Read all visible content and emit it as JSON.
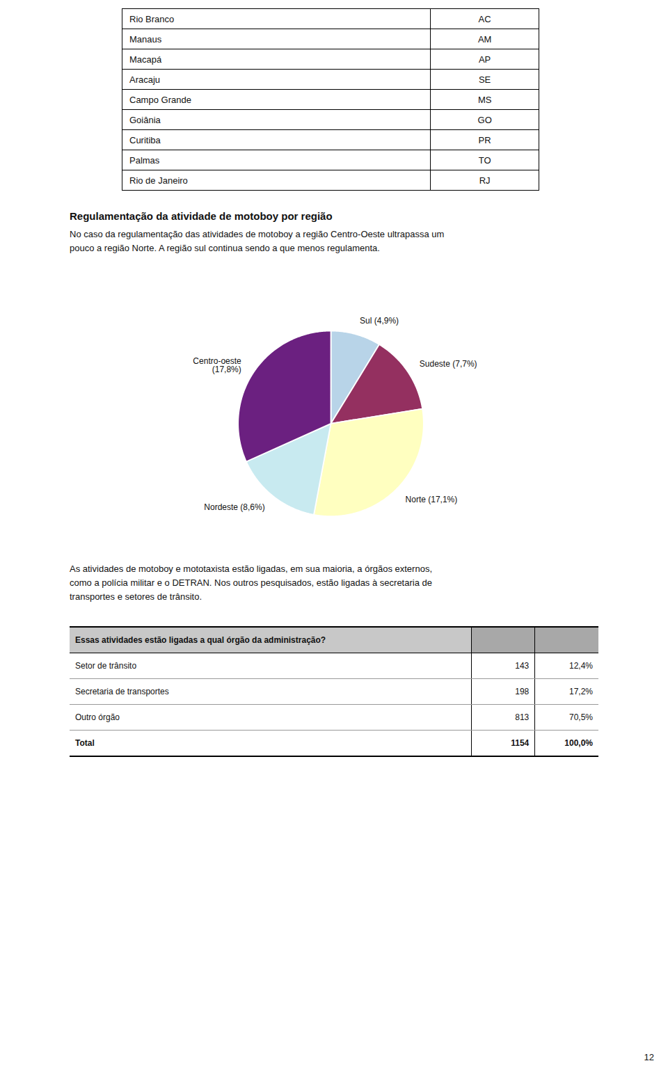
{
  "chart_data": [
    {
      "type": "table",
      "rows": [
        [
          "Rio Branco",
          "AC"
        ],
        [
          "Manaus",
          "AM"
        ],
        [
          "Macapá",
          "AP"
        ],
        [
          "Aracaju",
          "SE"
        ],
        [
          "Campo Grande",
          "MS"
        ],
        [
          "Goiânia",
          "GO"
        ],
        [
          "Curitiba",
          "PR"
        ],
        [
          "Palmas",
          "TO"
        ],
        [
          "Rio de Janeiro",
          "RJ"
        ]
      ]
    },
    {
      "type": "pie",
      "title": "Regulamentação da atividade de motoboy por região",
      "subtitle": [
        "No caso da regulamentação das atividades de motoboy a região Centro-Oeste ultrapassa um",
        "pouco a região Norte. A região sul continua sendo a que menos regulamenta."
      ],
      "categories": [
        "Sul",
        "Sudeste",
        "Norte",
        "Nordeste",
        "Centro-oeste"
      ],
      "values": [
        4.9,
        7.7,
        17.1,
        8.6,
        17.8
      ],
      "value_labels": [
        "Sul (4,9%)",
        "Sudeste (7,7%)",
        "Norte (17,1%)",
        "Nordeste (8,6%)",
        "Centro-oeste\n(17,8%)"
      ],
      "colors": [
        "#b8d4e8",
        "#943060",
        "#ffffc0",
        "#c8eaf0",
        "#6b2080"
      ]
    },
    {
      "type": "text",
      "annotations": [
        "As atividades de motoboy e mototaxista estão ligadas, em sua maioria, a órgãos externos,",
        "como a polícia militar e o DETRAN. Nos outros pesquisados, estão ligadas à secretaria de",
        "transportes e setores de trânsito."
      ]
    },
    {
      "type": "table",
      "title": "Essas atividades estão ligadas a qual órgão da administração?",
      "categories": [
        "Setor de trânsito",
        "Secretaria de transportes",
        "Outro órgão",
        "Total"
      ],
      "series": [
        {
          "values": [
            143,
            198,
            813,
            1154
          ]
        },
        {
          "values": [
            12.4,
            17.2,
            70.5,
            100.0
          ],
          "value_labels": [
            "12,4%",
            "17,2%",
            "70,5%",
            "100,0%"
          ]
        }
      ]
    },
    {
      "type": "text",
      "annotations": [
        "12"
      ]
    }
  ]
}
